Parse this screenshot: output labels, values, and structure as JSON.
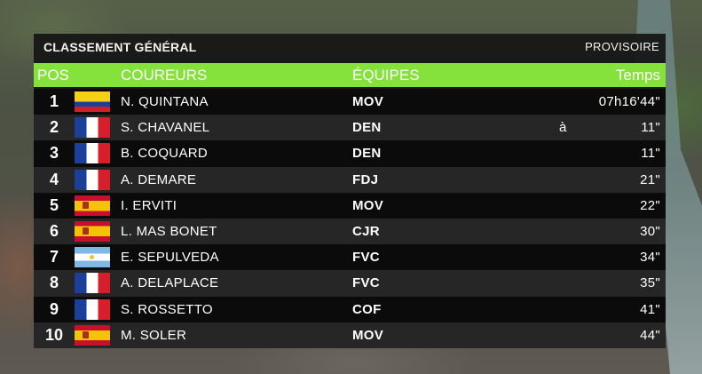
{
  "board": {
    "title": "CLASSEMENT GÉNÉRAL",
    "status": "PROVISOIRE",
    "columns": {
      "pos": "POS",
      "riders": "COUREURS",
      "teams": "ÉQUIPES",
      "time": "Temps"
    }
  },
  "rows": [
    {
      "pos": "1",
      "flag": "colombia-flag",
      "name": "N. QUINTANA",
      "team": "MOV",
      "gap": "",
      "time": "07h16'44\""
    },
    {
      "pos": "2",
      "flag": "france-flag",
      "name": "S. CHAVANEL",
      "team": "DEN",
      "gap": "à",
      "time": "11\""
    },
    {
      "pos": "3",
      "flag": "france-flag",
      "name": "B. COQUARD",
      "team": "DEN",
      "gap": "",
      "time": "11\""
    },
    {
      "pos": "4",
      "flag": "france-flag",
      "name": "A. DEMARE",
      "team": "FDJ",
      "gap": "",
      "time": "21\""
    },
    {
      "pos": "5",
      "flag": "spain-flag",
      "name": "I. ERVITI",
      "team": "MOV",
      "gap": "",
      "time": "22\""
    },
    {
      "pos": "6",
      "flag": "spain-flag",
      "name": "L. MAS BONET",
      "team": "CJR",
      "gap": "",
      "time": "30\""
    },
    {
      "pos": "7",
      "flag": "argentina-flag",
      "name": "E. SEPULVEDA",
      "team": "FVC",
      "gap": "",
      "time": "34\""
    },
    {
      "pos": "8",
      "flag": "france-flag",
      "name": "A. DELAPLACE",
      "team": "FVC",
      "gap": "",
      "time": "35\""
    },
    {
      "pos": "9",
      "flag": "france-flag",
      "name": "S. ROSSETTO",
      "team": "COF",
      "gap": "",
      "time": "41\""
    },
    {
      "pos": "10",
      "flag": "spain-flag",
      "name": "M. SOLER",
      "team": "MOV",
      "gap": "",
      "time": "44\""
    }
  ],
  "colors": {
    "accent": "#84e23a",
    "panel": "#161616"
  }
}
